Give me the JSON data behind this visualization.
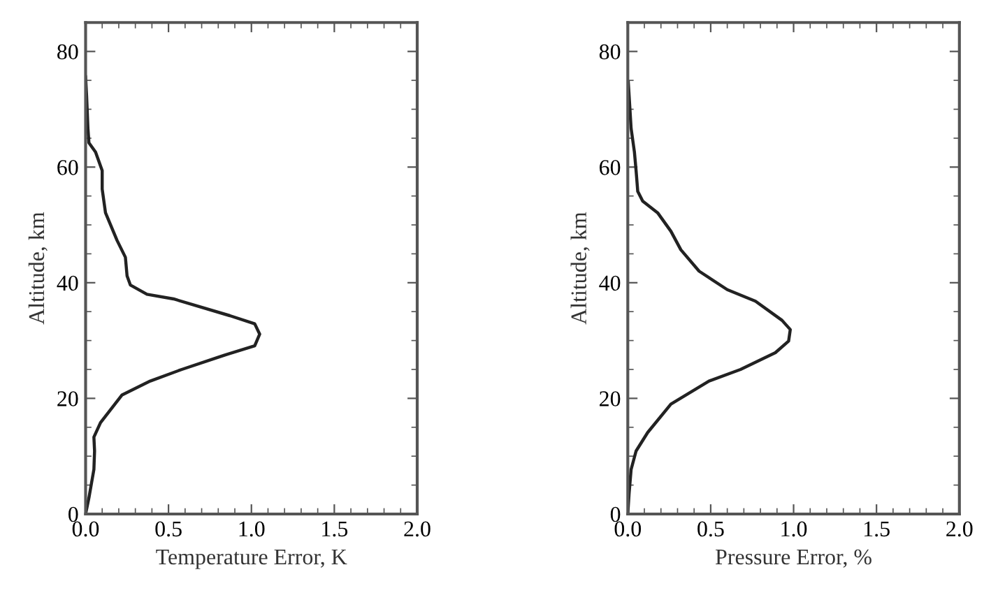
{
  "chart_data": [
    {
      "type": "line",
      "xlabel": "Temperature Error, K",
      "ylabel": "Altitude, km",
      "xlim": [
        0,
        2
      ],
      "xticks": [
        {
          "value": 0,
          "label": "0.0"
        },
        {
          "value": 0.5,
          "label": "0.5"
        },
        {
          "value": 1,
          "label": "1.0"
        },
        {
          "value": 1.5,
          "label": "1.5"
        },
        {
          "value": 2,
          "label": "2.0"
        }
      ],
      "ylim": [
        0,
        85
      ],
      "yticks": [
        0,
        20,
        40,
        60,
        80
      ],
      "grid": false,
      "legend": false,
      "marker": "none",
      "line_style": "solid",
      "series": [
        {
          "color": "#222222",
          "x": [
            0,
            0.02,
            0.05,
            0.054,
            0.05,
            0.09,
            0.22,
            0.39,
            0.58,
            0.84,
            1.02,
            1.05,
            1.02,
            0.87,
            0.53,
            0.37,
            0.27,
            0.25,
            0.24,
            0.19,
            0.12,
            0.1,
            0.1,
            0.06,
            0.02,
            0.014,
            0.006,
            0
          ],
          "values": [
            0,
            2.8,
            7.7,
            10.9,
            13.3,
            15.8,
            20.6,
            23,
            25,
            27.5,
            29.1,
            31.1,
            32.9,
            34.3,
            37.2,
            38,
            39.6,
            41.2,
            44.4,
            47.3,
            52.1,
            56.2,
            59.4,
            62.6,
            64.2,
            66.7,
            72.3,
            75.6
          ]
        }
      ]
    },
    {
      "type": "line",
      "xlabel": "Pressure Error, %",
      "ylabel": "Altitude, km",
      "xlim": [
        0,
        2
      ],
      "xticks": [
        {
          "value": 0,
          "label": "0.0"
        },
        {
          "value": 0.5,
          "label": "0.5"
        },
        {
          "value": 1,
          "label": "1.0"
        },
        {
          "value": 1.5,
          "label": "1.5"
        },
        {
          "value": 2,
          "label": "2.0"
        }
      ],
      "ylim": [
        0,
        85
      ],
      "yticks": [
        0,
        20,
        40,
        60,
        80
      ],
      "grid": false,
      "legend": false,
      "marker": "none",
      "line_style": "solid",
      "series": [
        {
          "color": "#222222",
          "x": [
            0,
            0.008,
            0.02,
            0.05,
            0.12,
            0.26,
            0.49,
            0.68,
            0.89,
            0.97,
            0.98,
            0.93,
            0.77,
            0.6,
            0.43,
            0.32,
            0.26,
            0.18,
            0.09,
            0.06,
            0.05,
            0.04,
            0.02,
            0.003
          ],
          "values": [
            0,
            3.6,
            7.7,
            10.9,
            14.1,
            19,
            23,
            25,
            27.9,
            29.9,
            31.9,
            33.5,
            36.8,
            38.8,
            42,
            45.7,
            48.9,
            52.1,
            54.1,
            55.8,
            59.4,
            62.6,
            66.7,
            74.7
          ]
        }
      ]
    }
  ]
}
